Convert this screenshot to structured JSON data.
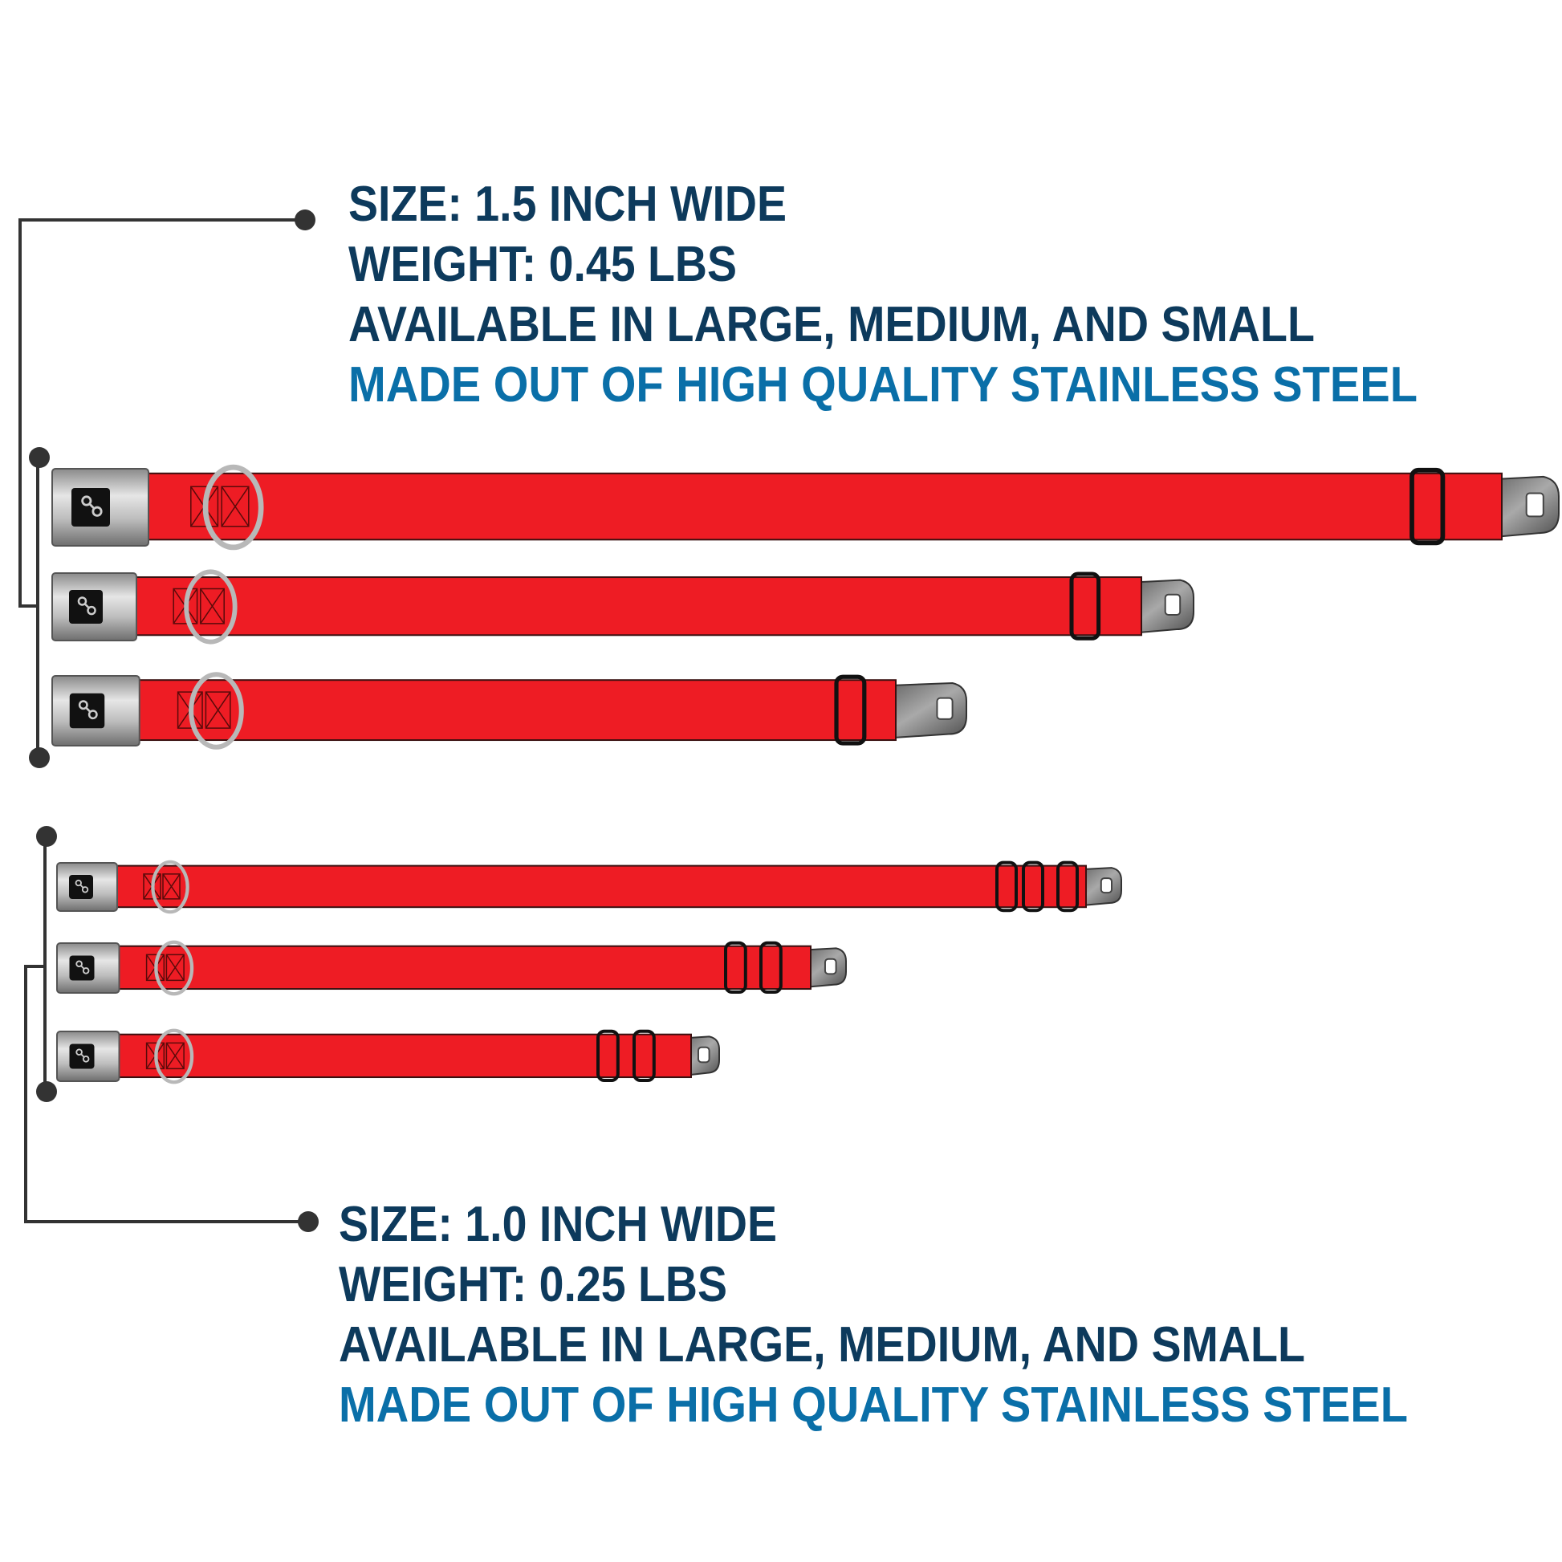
{
  "colors": {
    "heading": "#0d3a5c",
    "accent": "#0a6fa8",
    "strap": "#ee1c24",
    "connector": "#333333"
  },
  "wide_group": {
    "size": "SIZE: 1.5 INCH WIDE",
    "weight": "WEIGHT: 0.45 LBS",
    "availability": "AVAILABLE IN LARGE, MEDIUM, AND SMALL",
    "material": "MADE OUT OF HIGH QUALITY STAINLESS STEEL",
    "collars": [
      "large",
      "medium",
      "small"
    ],
    "icon": "bone-icon"
  },
  "narrow_group": {
    "size": "SIZE: 1.0 INCH WIDE",
    "weight": "WEIGHT: 0.25 LBS",
    "availability": "AVAILABLE IN LARGE, MEDIUM, AND SMALL",
    "material": "MADE OUT OF HIGH QUALITY STAINLESS STEEL",
    "collars": [
      "large",
      "medium",
      "small"
    ],
    "icon": "bone-icon"
  }
}
